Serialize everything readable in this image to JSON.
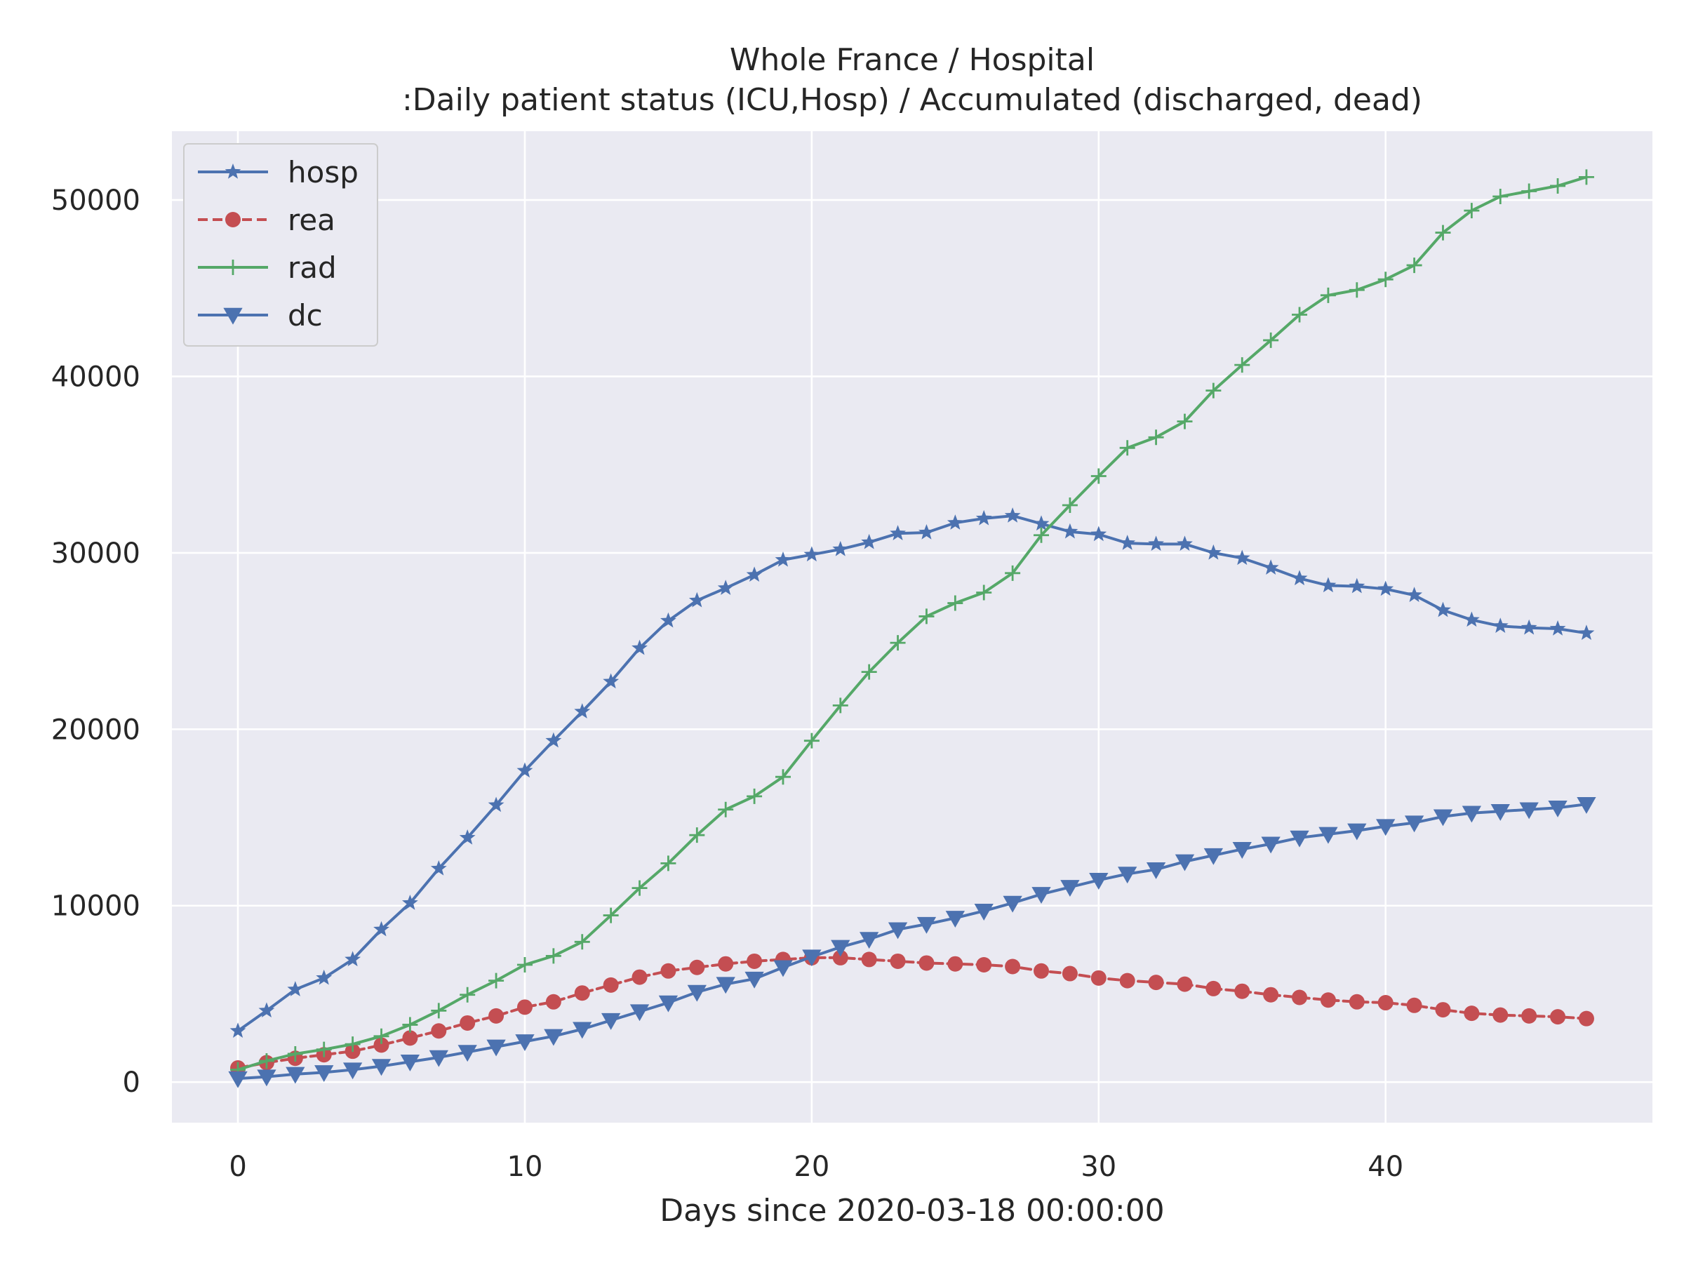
{
  "chart_data": {
    "type": "line",
    "title": "Whole France / Hospital",
    "subtitle": ":Daily patient status (ICU,Hosp) / Accumulated (discharged, dead)",
    "xlabel": "Days since 2020-03-18 00:00:00",
    "ylabel": "",
    "xlim": [
      -2.3,
      49.3
    ],
    "ylim": [
      -2300,
      53900
    ],
    "xticks": [
      0,
      10,
      20,
      30,
      40
    ],
    "yticks": [
      0,
      10000,
      20000,
      30000,
      40000,
      50000
    ],
    "grid": true,
    "legend_position": "top-left",
    "x": [
      0,
      1,
      2,
      3,
      4,
      5,
      6,
      7,
      8,
      9,
      10,
      11,
      12,
      13,
      14,
      15,
      16,
      17,
      18,
      19,
      20,
      21,
      22,
      23,
      24,
      25,
      26,
      27,
      28,
      29,
      30,
      31,
      32,
      33,
      34,
      35,
      36,
      37,
      38,
      39,
      40,
      41,
      42,
      43,
      44,
      45,
      46,
      47
    ],
    "series": [
      {
        "name": "hosp",
        "color": "#4c72b0",
        "linestyle": "solid",
        "marker": "star",
        "values": [
          2900,
          4050,
          5250,
          5900,
          6950,
          8650,
          10150,
          12100,
          13850,
          15700,
          17650,
          19350,
          21000,
          22700,
          24600,
          26150,
          27300,
          28000,
          28750,
          29600,
          29900,
          30200,
          30600,
          31100,
          31150,
          31700,
          31950,
          32100,
          31650,
          31200,
          31050,
          30550,
          30500,
          30500,
          30000,
          29700,
          29150,
          28550,
          28150,
          28100,
          27950,
          27600,
          26750,
          26200,
          25850,
          25750,
          25700,
          25450
        ]
      },
      {
        "name": "rea",
        "color": "#c44e52",
        "linestyle": "dashed",
        "marker": "circle",
        "values": [
          800,
          1100,
          1350,
          1550,
          1750,
          2100,
          2500,
          2900,
          3350,
          3750,
          4250,
          4550,
          5050,
          5500,
          5950,
          6300,
          6500,
          6700,
          6850,
          6950,
          7050,
          7050,
          6950,
          6850,
          6750,
          6700,
          6650,
          6550,
          6300,
          6150,
          5900,
          5750,
          5650,
          5550,
          5300,
          5150,
          4950,
          4800,
          4650,
          4550,
          4500,
          4350,
          4100,
          3900,
          3800,
          3750,
          3700,
          3600
        ]
      },
      {
        "name": "rad",
        "color": "#55a868",
        "linestyle": "solid",
        "marker": "plus",
        "values": [
          700,
          1200,
          1600,
          1850,
          2150,
          2600,
          3250,
          4050,
          4950,
          5750,
          6650,
          7150,
          7950,
          9450,
          11000,
          12400,
          14000,
          15450,
          16200,
          17300,
          19350,
          21350,
          23250,
          24900,
          26400,
          27150,
          27750,
          28850,
          31000,
          32700,
          34350,
          35950,
          36550,
          37450,
          39200,
          40650,
          42050,
          43500,
          44600,
          44900,
          45500,
          46300,
          48150,
          49400,
          50200,
          50500,
          50800,
          51300
        ]
      },
      {
        "name": "dc",
        "color": "#4c72b0",
        "linestyle": "solid",
        "marker": "triangle-down",
        "values": [
          200,
          300,
          450,
          550,
          700,
          900,
          1150,
          1400,
          1700,
          2000,
          2300,
          2600,
          3000,
          3500,
          4000,
          4500,
          5100,
          5550,
          5850,
          6500,
          7100,
          7650,
          8100,
          8650,
          8950,
          9300,
          9700,
          10150,
          10650,
          11050,
          11450,
          11800,
          12050,
          12500,
          12850,
          13200,
          13500,
          13850,
          14050,
          14250,
          14500,
          14700,
          15050,
          15250,
          15350,
          15450,
          15550,
          15750
        ]
      }
    ]
  }
}
